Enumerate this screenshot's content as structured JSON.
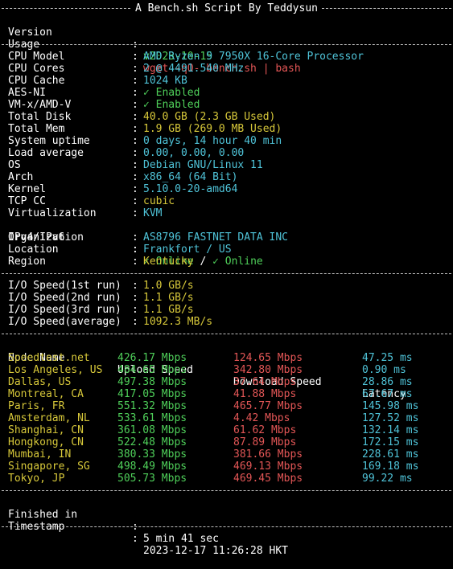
{
  "header": {
    "title": "A Bench.sh Script By Teddysun",
    "version_label": "Version",
    "version_value": "v2023-10-15",
    "usage_label": "Usage",
    "usage_value": "wget -qO- bench.sh | bash"
  },
  "system_info": [
    {
      "label": "CPU Model",
      "value": "AMD Ryzen 9 7950X 16-Core Processor",
      "color": "cyan"
    },
    {
      "label": "CPU Cores",
      "value": "2 @ 4491.540 MHz",
      "color": "cyan"
    },
    {
      "label": "CPU Cache",
      "value": "1024 KB",
      "color": "cyan"
    },
    {
      "label": "AES-NI",
      "value": "✓ Enabled",
      "color": "green"
    },
    {
      "label": "VM-x/AMD-V",
      "value": "✓ Enabled",
      "color": "green"
    },
    {
      "label": "Total Disk",
      "value": "40.0 GB (2.3 GB Used)",
      "color": "yellow"
    },
    {
      "label": "Total Mem",
      "value": "1.9 GB (269.0 MB Used)",
      "color": "yellow"
    },
    {
      "label": "System uptime",
      "value": "0 days, 14 hour 40 min",
      "color": "cyan"
    },
    {
      "label": "Load average",
      "value": "0.00, 0.00, 0.00",
      "color": "cyan"
    },
    {
      "label": "OS",
      "value": "Debian GNU/Linux 11",
      "color": "cyan"
    },
    {
      "label": "Arch",
      "value": "x86_64 (64 Bit)",
      "color": "cyan"
    },
    {
      "label": "Kernel",
      "value": "5.10.0-20-amd64",
      "color": "cyan"
    },
    {
      "label": "TCP CC",
      "value": "cubic",
      "color": "yellow"
    },
    {
      "label": "Virtualization",
      "value": "KVM",
      "color": "cyan"
    }
  ],
  "ipv46": {
    "label": "IPv4/IPv6",
    "v4": "✓ Online",
    "slash": " / ",
    "v6": "✓ Online"
  },
  "network_info": [
    {
      "label": "Organization",
      "value": "AS8796 FASTNET DATA INC",
      "color": "cyan"
    },
    {
      "label": "Location",
      "value": "Frankfort / US",
      "color": "cyan"
    },
    {
      "label": "Region",
      "value": "Kentucky",
      "color": "yellow"
    }
  ],
  "io_speed": [
    {
      "label": "I/O Speed(1st run)",
      "value": "1.0 GB/s"
    },
    {
      "label": "I/O Speed(2nd run)",
      "value": "1.1 GB/s"
    },
    {
      "label": "I/O Speed(3rd run)",
      "value": "1.1 GB/s"
    },
    {
      "label": "I/O Speed(average)",
      "value": "1092.3 MB/s"
    }
  ],
  "speedtest": {
    "headers": [
      "Node Name",
      "Upload Speed",
      "Download Speed",
      "Latency"
    ],
    "rows": [
      {
        "node": "Speedtest.net",
        "upload": "426.17 Mbps",
        "download": "124.65 Mbps",
        "latency": "47.25 ms"
      },
      {
        "node": "Los Angeles, US",
        "upload": "484.65 Mbps",
        "download": "342.80 Mbps",
        "latency": "0.90 ms"
      },
      {
        "node": "Dallas, US",
        "upload": "497.38 Mbps",
        "download": "37.64 Mbps",
        "latency": "28.86 ms"
      },
      {
        "node": "Montreal, CA",
        "upload": "417.05 Mbps",
        "download": "41.88 Mbps",
        "latency": "67.67 ms"
      },
      {
        "node": "Paris, FR",
        "upload": "551.32 Mbps",
        "download": "465.77 Mbps",
        "latency": "145.98 ms"
      },
      {
        "node": "Amsterdam, NL",
        "upload": "533.61 Mbps",
        "download": "4.42 Mbps",
        "latency": "127.52 ms"
      },
      {
        "node": "Shanghai, CN",
        "upload": "361.08 Mbps",
        "download": "61.62 Mbps",
        "latency": "132.14 ms"
      },
      {
        "node": "Hongkong, CN",
        "upload": "522.48 Mbps",
        "download": "87.89 Mbps",
        "latency": "172.15 ms"
      },
      {
        "node": "Mumbai, IN",
        "upload": "380.33 Mbps",
        "download": "381.66 Mbps",
        "latency": "228.61 ms"
      },
      {
        "node": "Singapore, SG",
        "upload": "498.49 Mbps",
        "download": "469.13 Mbps",
        "latency": "169.18 ms"
      },
      {
        "node": "Tokyo, JP",
        "upload": "505.73 Mbps",
        "download": "469.45 Mbps",
        "latency": "99.22 ms"
      }
    ]
  },
  "footer": {
    "finished_label": "Finished in",
    "finished_value": "5 min 41 sec",
    "timestamp_label": "Timestamp",
    "timestamp_value": "2023-12-17 11:26:28 HKT"
  },
  "colors": {
    "background": "#000000",
    "yellow": "#d7c83a",
    "cyan": "#4fc3d8",
    "green": "#4fd05a",
    "red": "#e35656",
    "white": "#ffffff",
    "separator": "#bfbfbf"
  }
}
